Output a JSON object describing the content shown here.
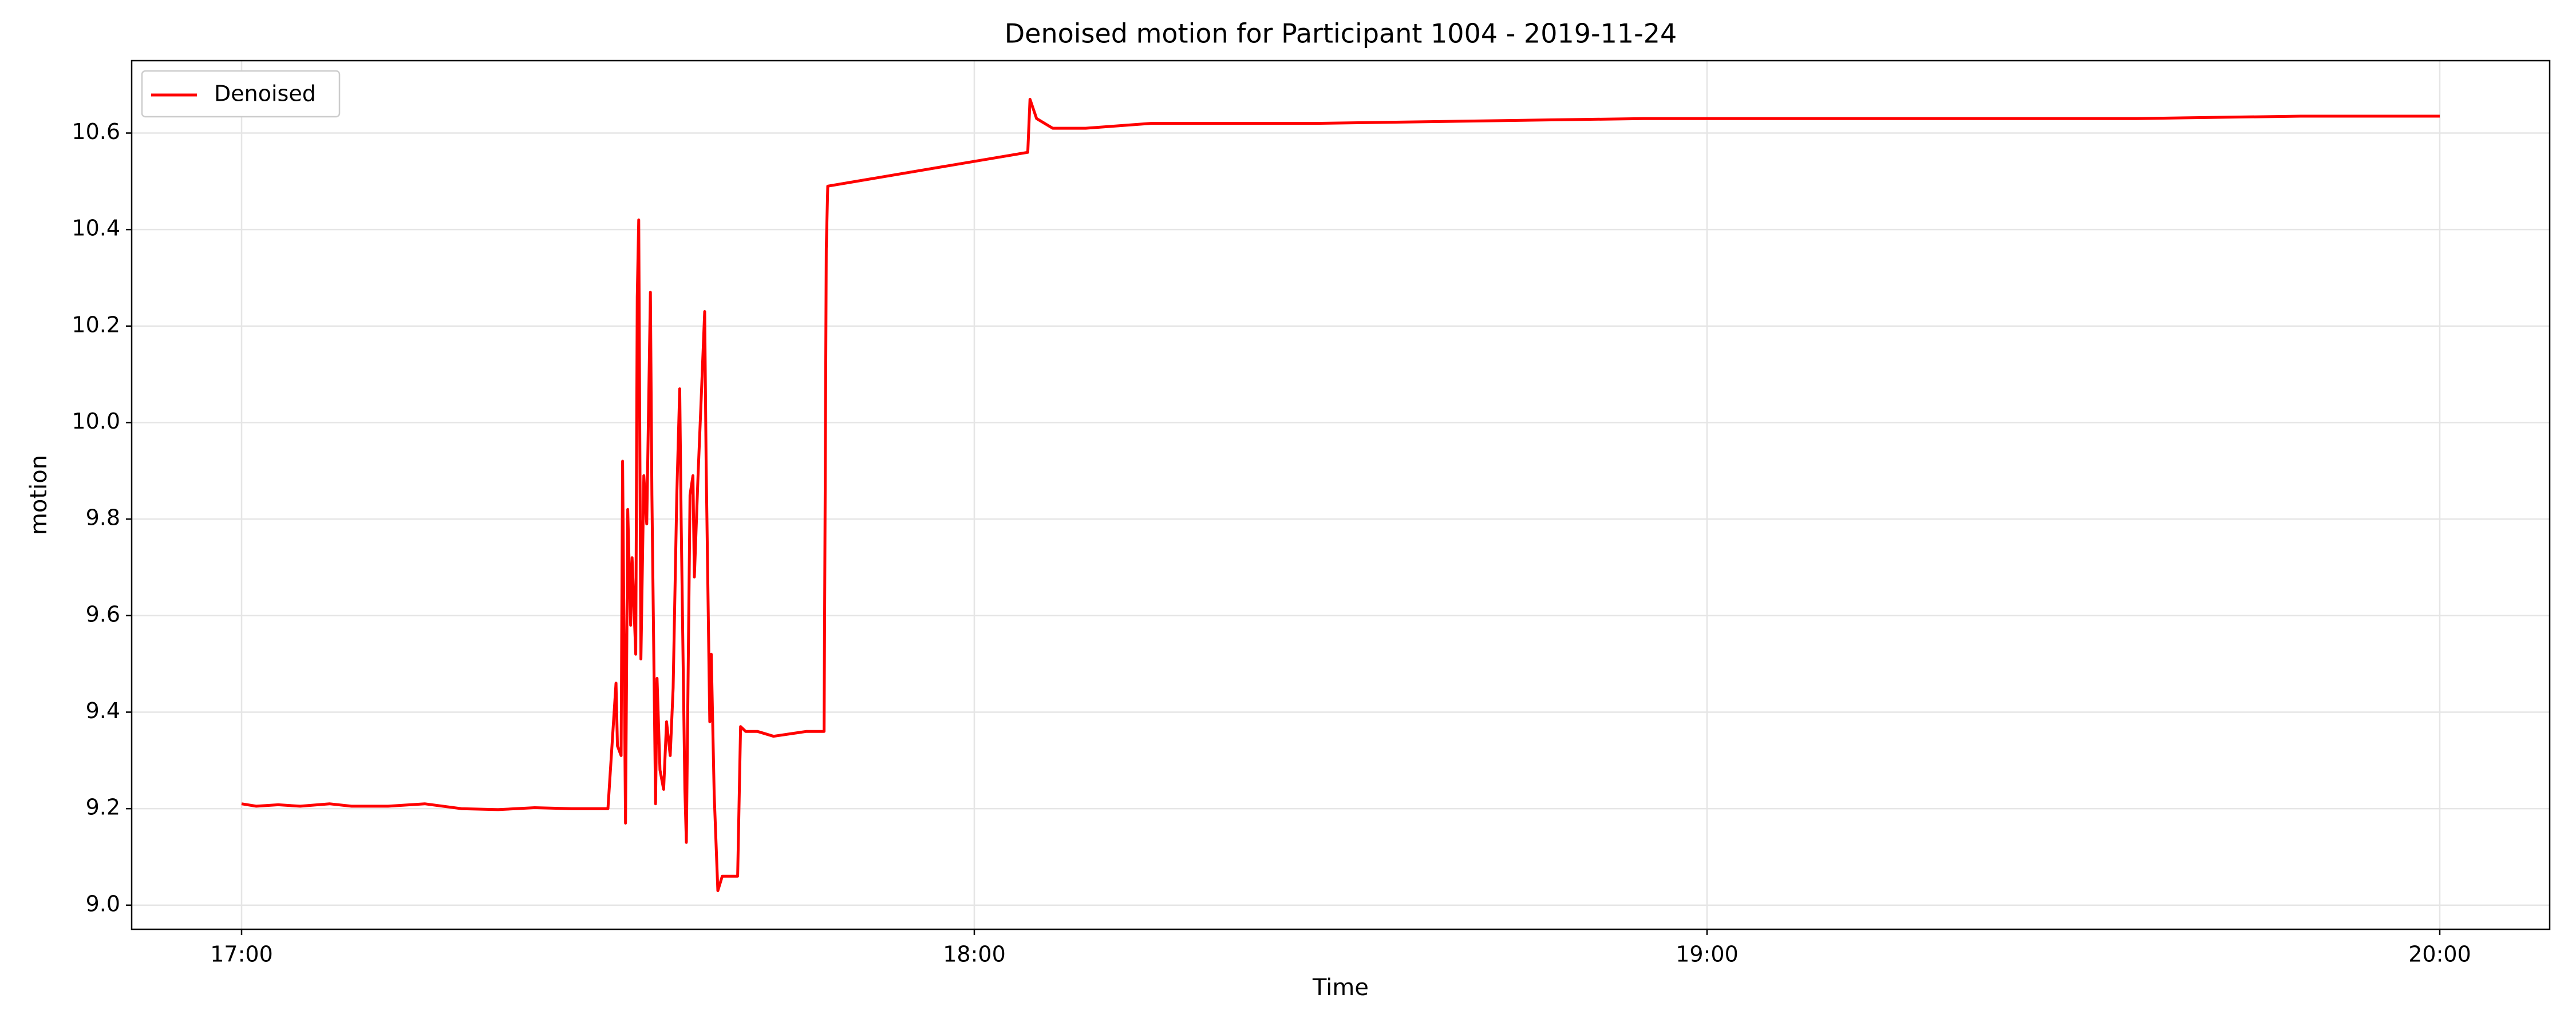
{
  "chart_data": {
    "type": "line",
    "title": "Denoised motion for Participant 1004 - 2019-11-24",
    "xlabel": "Time",
    "ylabel": "motion",
    "x": [
      17.0,
      17.02,
      17.05,
      17.08,
      17.12,
      17.15,
      17.2,
      17.25,
      17.3,
      17.35,
      17.4,
      17.45,
      17.5,
      17.511,
      17.513,
      17.518,
      17.52,
      17.524,
      17.527,
      17.531,
      17.533,
      17.538,
      17.54,
      17.542,
      17.545,
      17.549,
      17.553,
      17.558,
      17.56,
      17.565,
      17.567,
      17.571,
      17.576,
      17.58,
      17.585,
      17.589,
      17.594,
      17.598,
      17.6,
      17.605,
      17.607,
      17.612,
      17.616,
      17.618,
      17.623,
      17.627,
      17.632,
      17.634,
      17.639,
      17.641,
      17.645,
      17.65,
      17.656,
      17.663,
      17.672,
      17.677,
      17.681,
      17.688,
      17.704,
      17.726,
      17.771,
      17.795,
      17.798,
      17.8,
      18.073,
      18.076,
      18.085,
      18.107,
      18.152,
      18.241,
      18.465,
      18.689,
      18.913,
      19.003,
      19.138,
      19.362,
      19.586,
      19.81,
      20.0
    ],
    "series": [
      {
        "name": "Denoised",
        "color": "#ff0000",
        "values": [
          9.21,
          9.205,
          9.208,
          9.205,
          9.21,
          9.205,
          9.205,
          9.21,
          9.2,
          9.198,
          9.202,
          9.2,
          9.2,
          9.46,
          9.33,
          9.31,
          9.92,
          9.17,
          9.82,
          9.58,
          9.72,
          9.52,
          10.26,
          10.42,
          9.51,
          9.89,
          9.79,
          10.27,
          9.85,
          9.21,
          9.47,
          9.28,
          9.24,
          9.38,
          9.31,
          9.45,
          9.85,
          10.07,
          9.79,
          9.24,
          9.13,
          9.85,
          9.89,
          9.68,
          9.89,
          10.04,
          10.23,
          9.92,
          9.38,
          9.52,
          9.23,
          9.03,
          9.06,
          9.06,
          9.06,
          9.06,
          9.37,
          9.36,
          9.36,
          9.35,
          9.36,
          9.36,
          10.36,
          10.49,
          10.56,
          10.67,
          10.63,
          10.61,
          10.61,
          10.62,
          10.62,
          10.625,
          10.63,
          10.63,
          10.63,
          10.63,
          10.63,
          10.635,
          10.635
        ]
      }
    ],
    "xlim": [
      16.85,
      20.15
    ],
    "xticks": [
      {
        "value": 17,
        "label": "17:00"
      },
      {
        "value": 18,
        "label": "18:00"
      },
      {
        "value": 19,
        "label": "19:00"
      },
      {
        "value": 20,
        "label": "20:00"
      }
    ],
    "ylim": [
      8.95,
      10.75
    ],
    "yticks": [
      {
        "value": 9,
        "label": "9.0"
      },
      9.2,
      9.4,
      9.6,
      9.8,
      {
        "value": 10,
        "label": "10.0"
      },
      10.2,
      10.4,
      10.6
    ],
    "grid": true,
    "legend": "upper left"
  }
}
